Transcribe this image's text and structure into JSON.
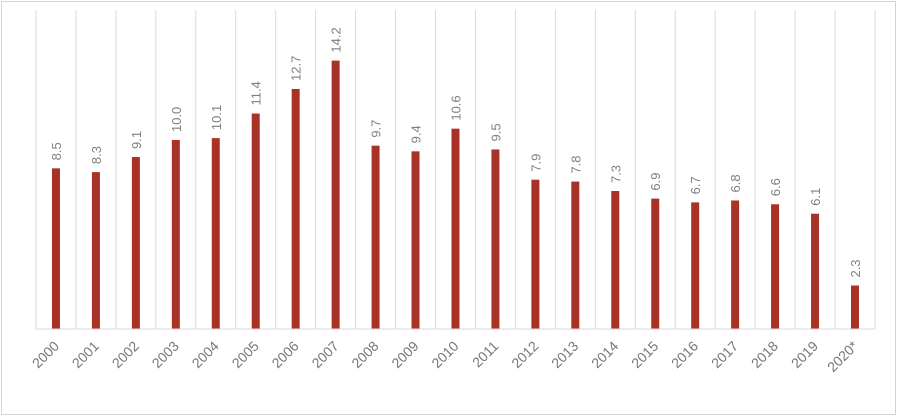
{
  "chart_data": {
    "type": "bar",
    "categories": [
      "2000",
      "2001",
      "2002",
      "2003",
      "2004",
      "2005",
      "2006",
      "2007",
      "2008",
      "2009",
      "2010",
      "2011",
      "2012",
      "2013",
      "2014",
      "2015",
      "2016",
      "2017",
      "2018",
      "2019",
      "2020*"
    ],
    "values": [
      8.5,
      8.3,
      9.1,
      10.0,
      10.1,
      11.4,
      12.7,
      14.2,
      9.7,
      9.4,
      10.6,
      9.5,
      7.9,
      7.8,
      7.3,
      6.9,
      6.7,
      6.8,
      6.6,
      6.1,
      2.3
    ],
    "labels": [
      "8.5",
      "8.3",
      "9.1",
      "10.0",
      "10.1",
      "11.4",
      "12.7",
      "14.2",
      "9.7",
      "9.4",
      "10.6",
      "9.5",
      "7.9",
      "7.8",
      "7.3",
      "6.9",
      "6.7",
      "6.8",
      "6.6",
      "6.1",
      "2.3"
    ],
    "title": "",
    "xlabel": "",
    "ylabel": "",
    "ylim": [
      0,
      15
    ],
    "grid": "vertical category separators",
    "legend": "none",
    "bar_color": "#a93226",
    "grid_color": "#d9d9d9"
  }
}
